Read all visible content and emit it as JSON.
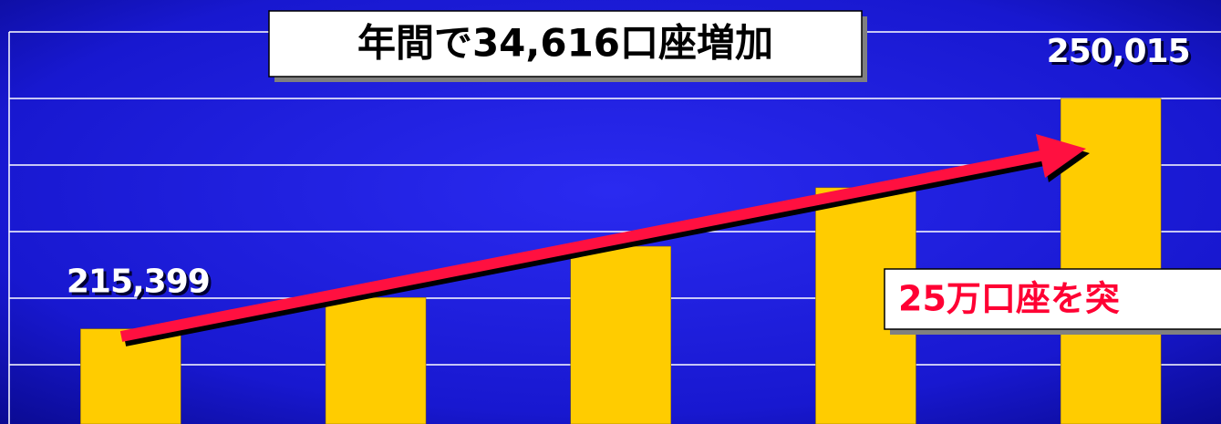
{
  "chart_data": {
    "type": "bar",
    "categories": [
      null,
      null,
      null,
      null,
      null
    ],
    "values": [
      215399,
      220100,
      227800,
      236600,
      250015
    ],
    "value_labels": [
      "215,399",
      null,
      null,
      null,
      "250,015"
    ],
    "color": "#ffcc00",
    "ylim": [
      201100,
      264800
    ],
    "yticks": [
      210000,
      220000,
      230000,
      240000,
      250000,
      260000
    ],
    "grid": true,
    "annotations": [
      "年間で34,616口座増加",
      "25万口座を突"
    ]
  }
}
